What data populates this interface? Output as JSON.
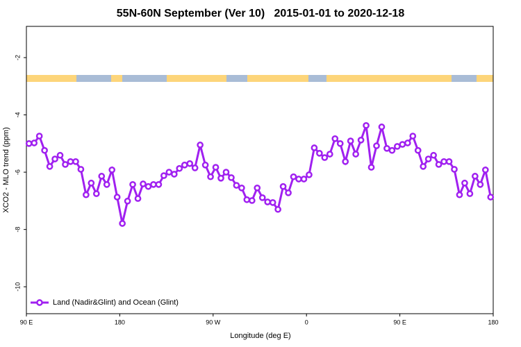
{
  "chart_data": {
    "type": "line",
    "title": "55N-60N September (Ver 10)   2015-01-01 to 2020-12-18",
    "x_label": "Longitude (deg E)",
    "y_label": "XCO2 - MLO trend (ppm)",
    "x": [
      92.5,
      97.5,
      102.5,
      107.5,
      112.5,
      117.5,
      122.5,
      127.5,
      132.5,
      137.5,
      142.5,
      147.5,
      152.5,
      157.5,
      162.5,
      167.5,
      172.5,
      177.5,
      182.5,
      187.5,
      192.5,
      197.5,
      202.5,
      207.5,
      212.5,
      217.5,
      222.5,
      227.5,
      232.5,
      237.5,
      242.5,
      247.5,
      252.5,
      257.5,
      262.5,
      267.5,
      272.5,
      277.5,
      282.5,
      287.5,
      292.5,
      297.5,
      302.5,
      307.5,
      312.5,
      317.5,
      322.5,
      327.5,
      332.5,
      337.5,
      342.5,
      347.5,
      352.5,
      357.5,
      362.5,
      367.5,
      372.5,
      377.5,
      382.5,
      387.5,
      392.5,
      397.5,
      402.5,
      407.5,
      412.5,
      417.5,
      422.5,
      427.5,
      432.5,
      437.5,
      442.5,
      447.5,
      452.5,
      457.5,
      462.5,
      467.5,
      472.5,
      477.5,
      482.5,
      487.5,
      492.5,
      497.5,
      502.5,
      507.5,
      512.5,
      517.5,
      522.5,
      527.5,
      532.5,
      537.5
    ],
    "series": [
      {
        "name": "Land (Nadir&Glint) and Ocean (Glint)",
        "color": "#a020f0",
        "values": [
          -5.0,
          -4.98,
          -4.74,
          -5.24,
          -5.8,
          -5.54,
          -5.41,
          -5.73,
          -5.63,
          -5.63,
          -5.9,
          -6.79,
          -6.38,
          -6.75,
          -6.14,
          -6.43,
          -5.92,
          -6.87,
          -7.79,
          -7.01,
          -6.43,
          -6.92,
          -6.41,
          -6.5,
          -6.43,
          -6.43,
          -6.12,
          -6.0,
          -6.07,
          -5.87,
          -5.75,
          -5.7,
          -5.85,
          -5.05,
          -5.75,
          -6.16,
          -5.83,
          -6.21,
          -6.0,
          -6.19,
          -6.46,
          -6.55,
          -6.96,
          -6.99,
          -6.55,
          -6.89,
          -7.04,
          -7.06,
          -7.3,
          -6.5,
          -6.72,
          -6.16,
          -6.24,
          -6.24,
          -6.09,
          -5.15,
          -5.34,
          -5.49,
          -5.37,
          -4.83,
          -5.0,
          -5.63,
          -4.91,
          -5.37,
          -4.88,
          -4.37,
          -5.83,
          -5.08,
          -4.42,
          -5.17,
          -5.24,
          -5.1,
          -5.03,
          -4.98,
          -4.74,
          -5.24,
          -5.8,
          -5.54,
          -5.41,
          -5.73,
          -5.63,
          -5.63,
          -5.9,
          -6.79,
          -6.38,
          -6.75,
          -6.14,
          -6.43,
          -5.92,
          -6.87
        ]
      }
    ],
    "xlim": [
      90,
      540
    ],
    "xticks": [
      {
        "value": 90,
        "label": "90 E"
      },
      180,
      {
        "value": 270,
        "label": "90 W"
      },
      {
        "value": 360,
        "label": "0"
      },
      {
        "value": 450,
        "label": "90 E"
      },
      {
        "value": 540,
        "label": "180"
      }
    ],
    "ylim": [
      -10.94,
      -0.91
    ],
    "yticks": [
      -2,
      -4,
      -6,
      -8,
      -10
    ],
    "legend": "lower left"
  }
}
